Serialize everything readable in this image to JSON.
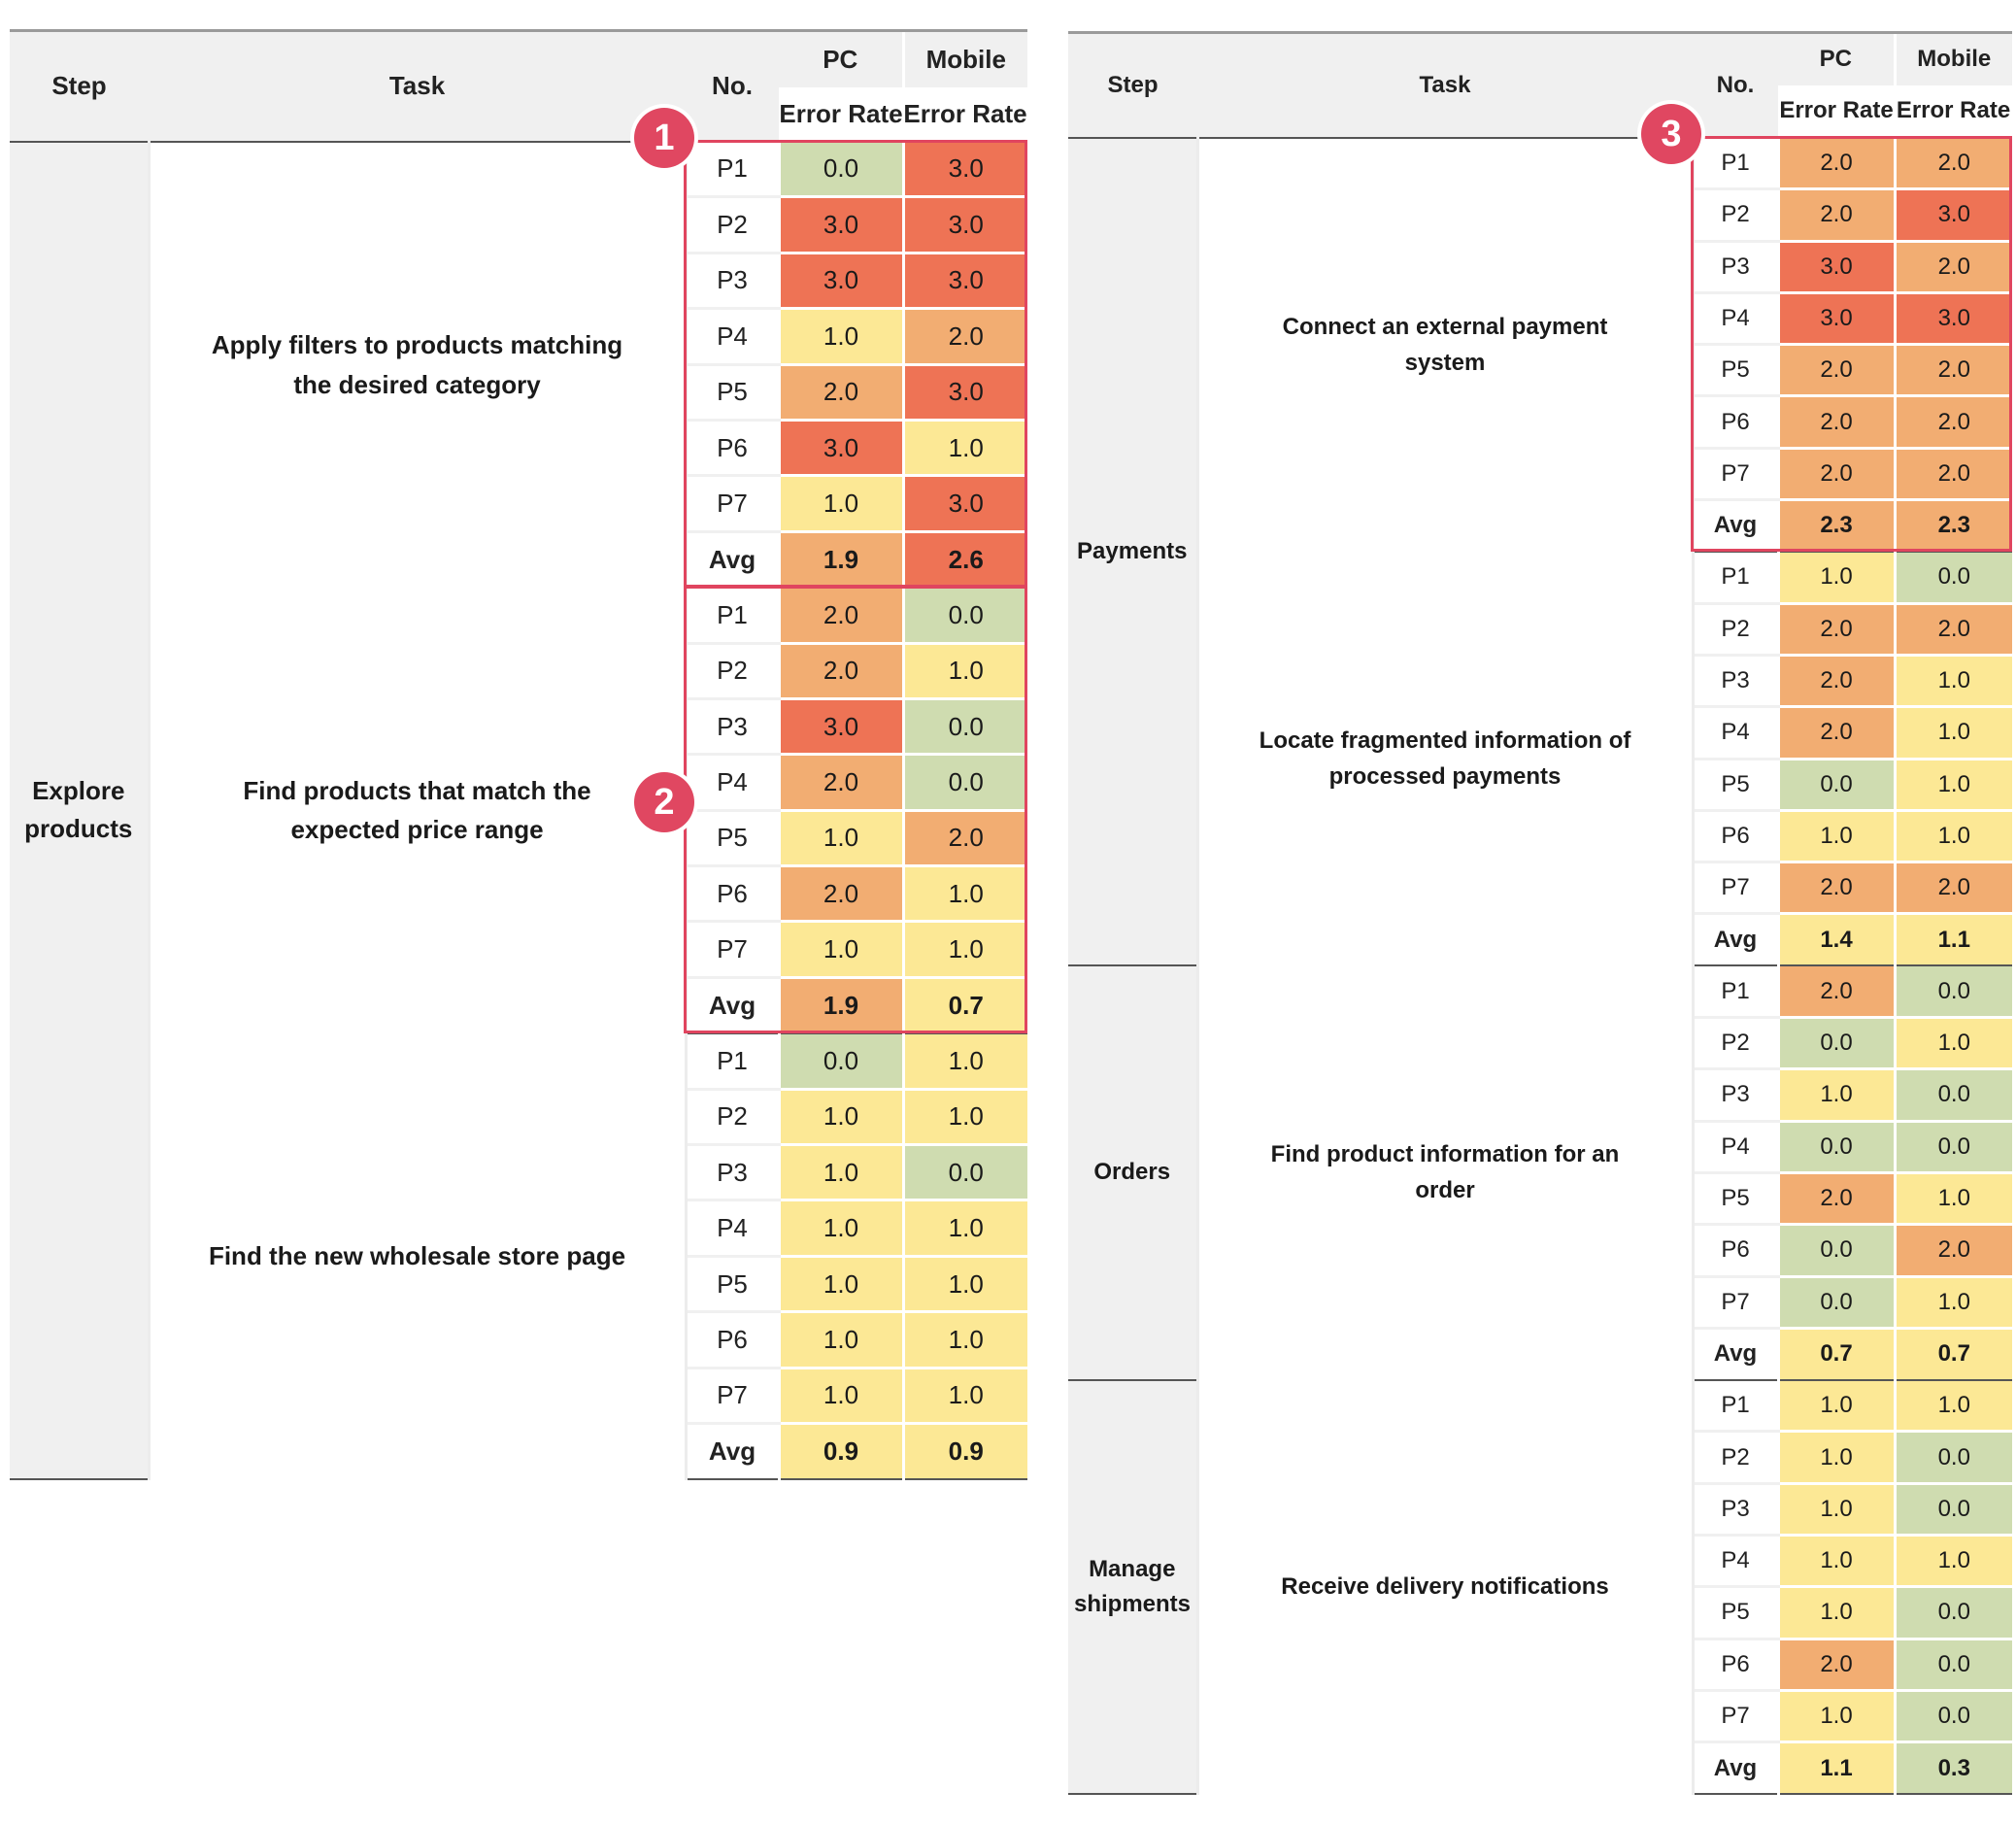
{
  "headers": {
    "step": "Step",
    "task": "Task",
    "no": "No.",
    "pc": "PC",
    "mobile": "Mobile",
    "error_rate": "Error Rate"
  },
  "scale": {
    "0.0": "#cfdcb0",
    "1.0": "#fce895",
    "2.0": "#f2ad72",
    "3.0": "#ee7355",
    "highlight": "#e0455f"
  },
  "left_table": {
    "steps": [
      {
        "label": "Explore products",
        "tasks": [
          {
            "label": "Apply filters to products matching the desired category",
            "badge": "1",
            "rows": [
              [
                "P1",
                "0.0",
                "3.0"
              ],
              [
                "P2",
                "3.0",
                "3.0"
              ],
              [
                "P3",
                "3.0",
                "3.0"
              ],
              [
                "P4",
                "1.0",
                "2.0"
              ],
              [
                "P5",
                "2.0",
                "3.0"
              ],
              [
                "P6",
                "3.0",
                "1.0"
              ],
              [
                "P7",
                "1.0",
                "3.0"
              ],
              [
                "Avg",
                "1.9",
                "2.6"
              ]
            ]
          },
          {
            "label": "Find products that match the expected price range",
            "badge": "2",
            "rows": [
              [
                "P1",
                "2.0",
                "0.0"
              ],
              [
                "P2",
                "2.0",
                "1.0"
              ],
              [
                "P3",
                "3.0",
                "0.0"
              ],
              [
                "P4",
                "2.0",
                "0.0"
              ],
              [
                "P5",
                "1.0",
                "2.0"
              ],
              [
                "P6",
                "2.0",
                "1.0"
              ],
              [
                "P7",
                "1.0",
                "1.0"
              ],
              [
                "Avg",
                "1.9",
                "0.7"
              ]
            ]
          },
          {
            "label": "Find the new wholesale store page",
            "rows": [
              [
                "P1",
                "0.0",
                "1.0"
              ],
              [
                "P2",
                "1.0",
                "1.0"
              ],
              [
                "P3",
                "1.0",
                "0.0"
              ],
              [
                "P4",
                "1.0",
                "1.0"
              ],
              [
                "P5",
                "1.0",
                "1.0"
              ],
              [
                "P6",
                "1.0",
                "1.0"
              ],
              [
                "P7",
                "1.0",
                "1.0"
              ],
              [
                "Avg",
                "0.9",
                "0.9"
              ]
            ]
          }
        ]
      }
    ]
  },
  "right_table": {
    "steps": [
      {
        "label": "Payments",
        "tasks": [
          {
            "label": "Connect an external payment system",
            "badge": "3",
            "rows": [
              [
                "P1",
                "2.0",
                "2.0"
              ],
              [
                "P2",
                "2.0",
                "3.0"
              ],
              [
                "P3",
                "3.0",
                "2.0"
              ],
              [
                "P4",
                "3.0",
                "3.0"
              ],
              [
                "P5",
                "2.0",
                "2.0"
              ],
              [
                "P6",
                "2.0",
                "2.0"
              ],
              [
                "P7",
                "2.0",
                "2.0"
              ],
              [
                "Avg",
                "2.3",
                "2.3"
              ]
            ]
          },
          {
            "label": "Locate fragmented information of processed payments",
            "rows": [
              [
                "P1",
                "1.0",
                "0.0"
              ],
              [
                "P2",
                "2.0",
                "2.0"
              ],
              [
                "P3",
                "2.0",
                "1.0"
              ],
              [
                "P4",
                "2.0",
                "1.0"
              ],
              [
                "P5",
                "0.0",
                "1.0"
              ],
              [
                "P6",
                "1.0",
                "1.0"
              ],
              [
                "P7",
                "2.0",
                "2.0"
              ],
              [
                "Avg",
                "1.4",
                "1.1"
              ]
            ]
          }
        ]
      },
      {
        "label": "Orders",
        "tasks": [
          {
            "label": "Find product information for an order",
            "rows": [
              [
                "P1",
                "2.0",
                "0.0"
              ],
              [
                "P2",
                "0.0",
                "1.0"
              ],
              [
                "P3",
                "1.0",
                "0.0"
              ],
              [
                "P4",
                "0.0",
                "0.0"
              ],
              [
                "P5",
                "2.0",
                "1.0"
              ],
              [
                "P6",
                "0.0",
                "2.0"
              ],
              [
                "P7",
                "0.0",
                "1.0"
              ],
              [
                "Avg",
                "0.7",
                "0.7"
              ]
            ]
          }
        ]
      },
      {
        "label": "Manage shipments",
        "tasks": [
          {
            "label": "Receive delivery notifications",
            "rows": [
              [
                "P1",
                "1.0",
                "1.0"
              ],
              [
                "P2",
                "1.0",
                "0.0"
              ],
              [
                "P3",
                "1.0",
                "0.0"
              ],
              [
                "P4",
                "1.0",
                "1.0"
              ],
              [
                "P5",
                "1.0",
                "0.0"
              ],
              [
                "P6",
                "2.0",
                "0.0"
              ],
              [
                "P7",
                "1.0",
                "0.0"
              ],
              [
                "Avg",
                "1.1",
                "0.3"
              ]
            ]
          }
        ]
      }
    ]
  }
}
